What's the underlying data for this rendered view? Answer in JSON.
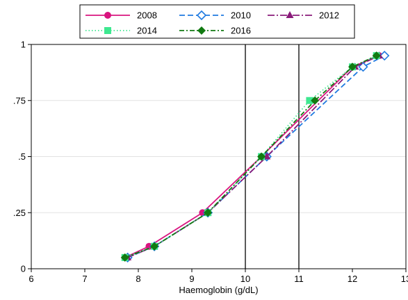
{
  "chart_data": {
    "type": "line",
    "xlabel": "Haemoglobin (g/dL)",
    "ylabel": "",
    "xlim": [
      6,
      13
    ],
    "ylim": [
      0,
      1
    ],
    "x_ticks": [
      6,
      7,
      8,
      9,
      10,
      11,
      12,
      13
    ],
    "x_tick_labels": [
      "6",
      "7",
      "8",
      "9",
      "10",
      "11",
      "12",
      "13"
    ],
    "y_ticks": [
      0,
      0.25,
      0.5,
      0.75,
      1
    ],
    "y_tick_labels": [
      "0",
      ".25",
      ".5",
      ".75",
      "1"
    ],
    "grid": "horizontal",
    "vertical_reference_lines": [
      10,
      11
    ],
    "legend_position": "top",
    "series": [
      {
        "name": "2008",
        "color": "#d9147f",
        "dash": "solid",
        "marker": "circle",
        "x": [
          7.75,
          8.2,
          9.2,
          10.3,
          12.0,
          12.5
        ],
        "y": [
          0.05,
          0.1,
          0.25,
          0.5,
          0.9,
          0.95
        ]
      },
      {
        "name": "2010",
        "color": "#1f7ae0",
        "dash": "dashed",
        "marker": "diamond-open",
        "x": [
          7.8,
          8.3,
          9.3,
          10.4,
          12.2,
          12.6
        ],
        "y": [
          0.05,
          0.1,
          0.25,
          0.5,
          0.9,
          0.95
        ]
      },
      {
        "name": "2012",
        "color": "#8a1a7a",
        "dash": "longdashdot",
        "marker": "triangle",
        "x": [
          7.8,
          8.3,
          9.3,
          10.4,
          12.05,
          12.5
        ],
        "y": [
          0.05,
          0.1,
          0.25,
          0.5,
          0.9,
          0.95
        ]
      },
      {
        "name": "2014",
        "color": "#3ee890",
        "dash": "dotted",
        "marker": "square",
        "x": [
          7.75,
          8.3,
          9.3,
          10.3,
          11.2,
          12.0,
          12.45
        ],
        "y": [
          0.05,
          0.1,
          0.25,
          0.5,
          0.75,
          0.9,
          0.95
        ]
      },
      {
        "name": "2016",
        "color": "#127a12",
        "dash": "dashdot",
        "marker": "diamond",
        "x": [
          7.75,
          8.3,
          9.3,
          10.3,
          11.3,
          12.0,
          12.45
        ],
        "y": [
          0.05,
          0.1,
          0.25,
          0.5,
          0.75,
          0.9,
          0.95
        ]
      }
    ]
  }
}
